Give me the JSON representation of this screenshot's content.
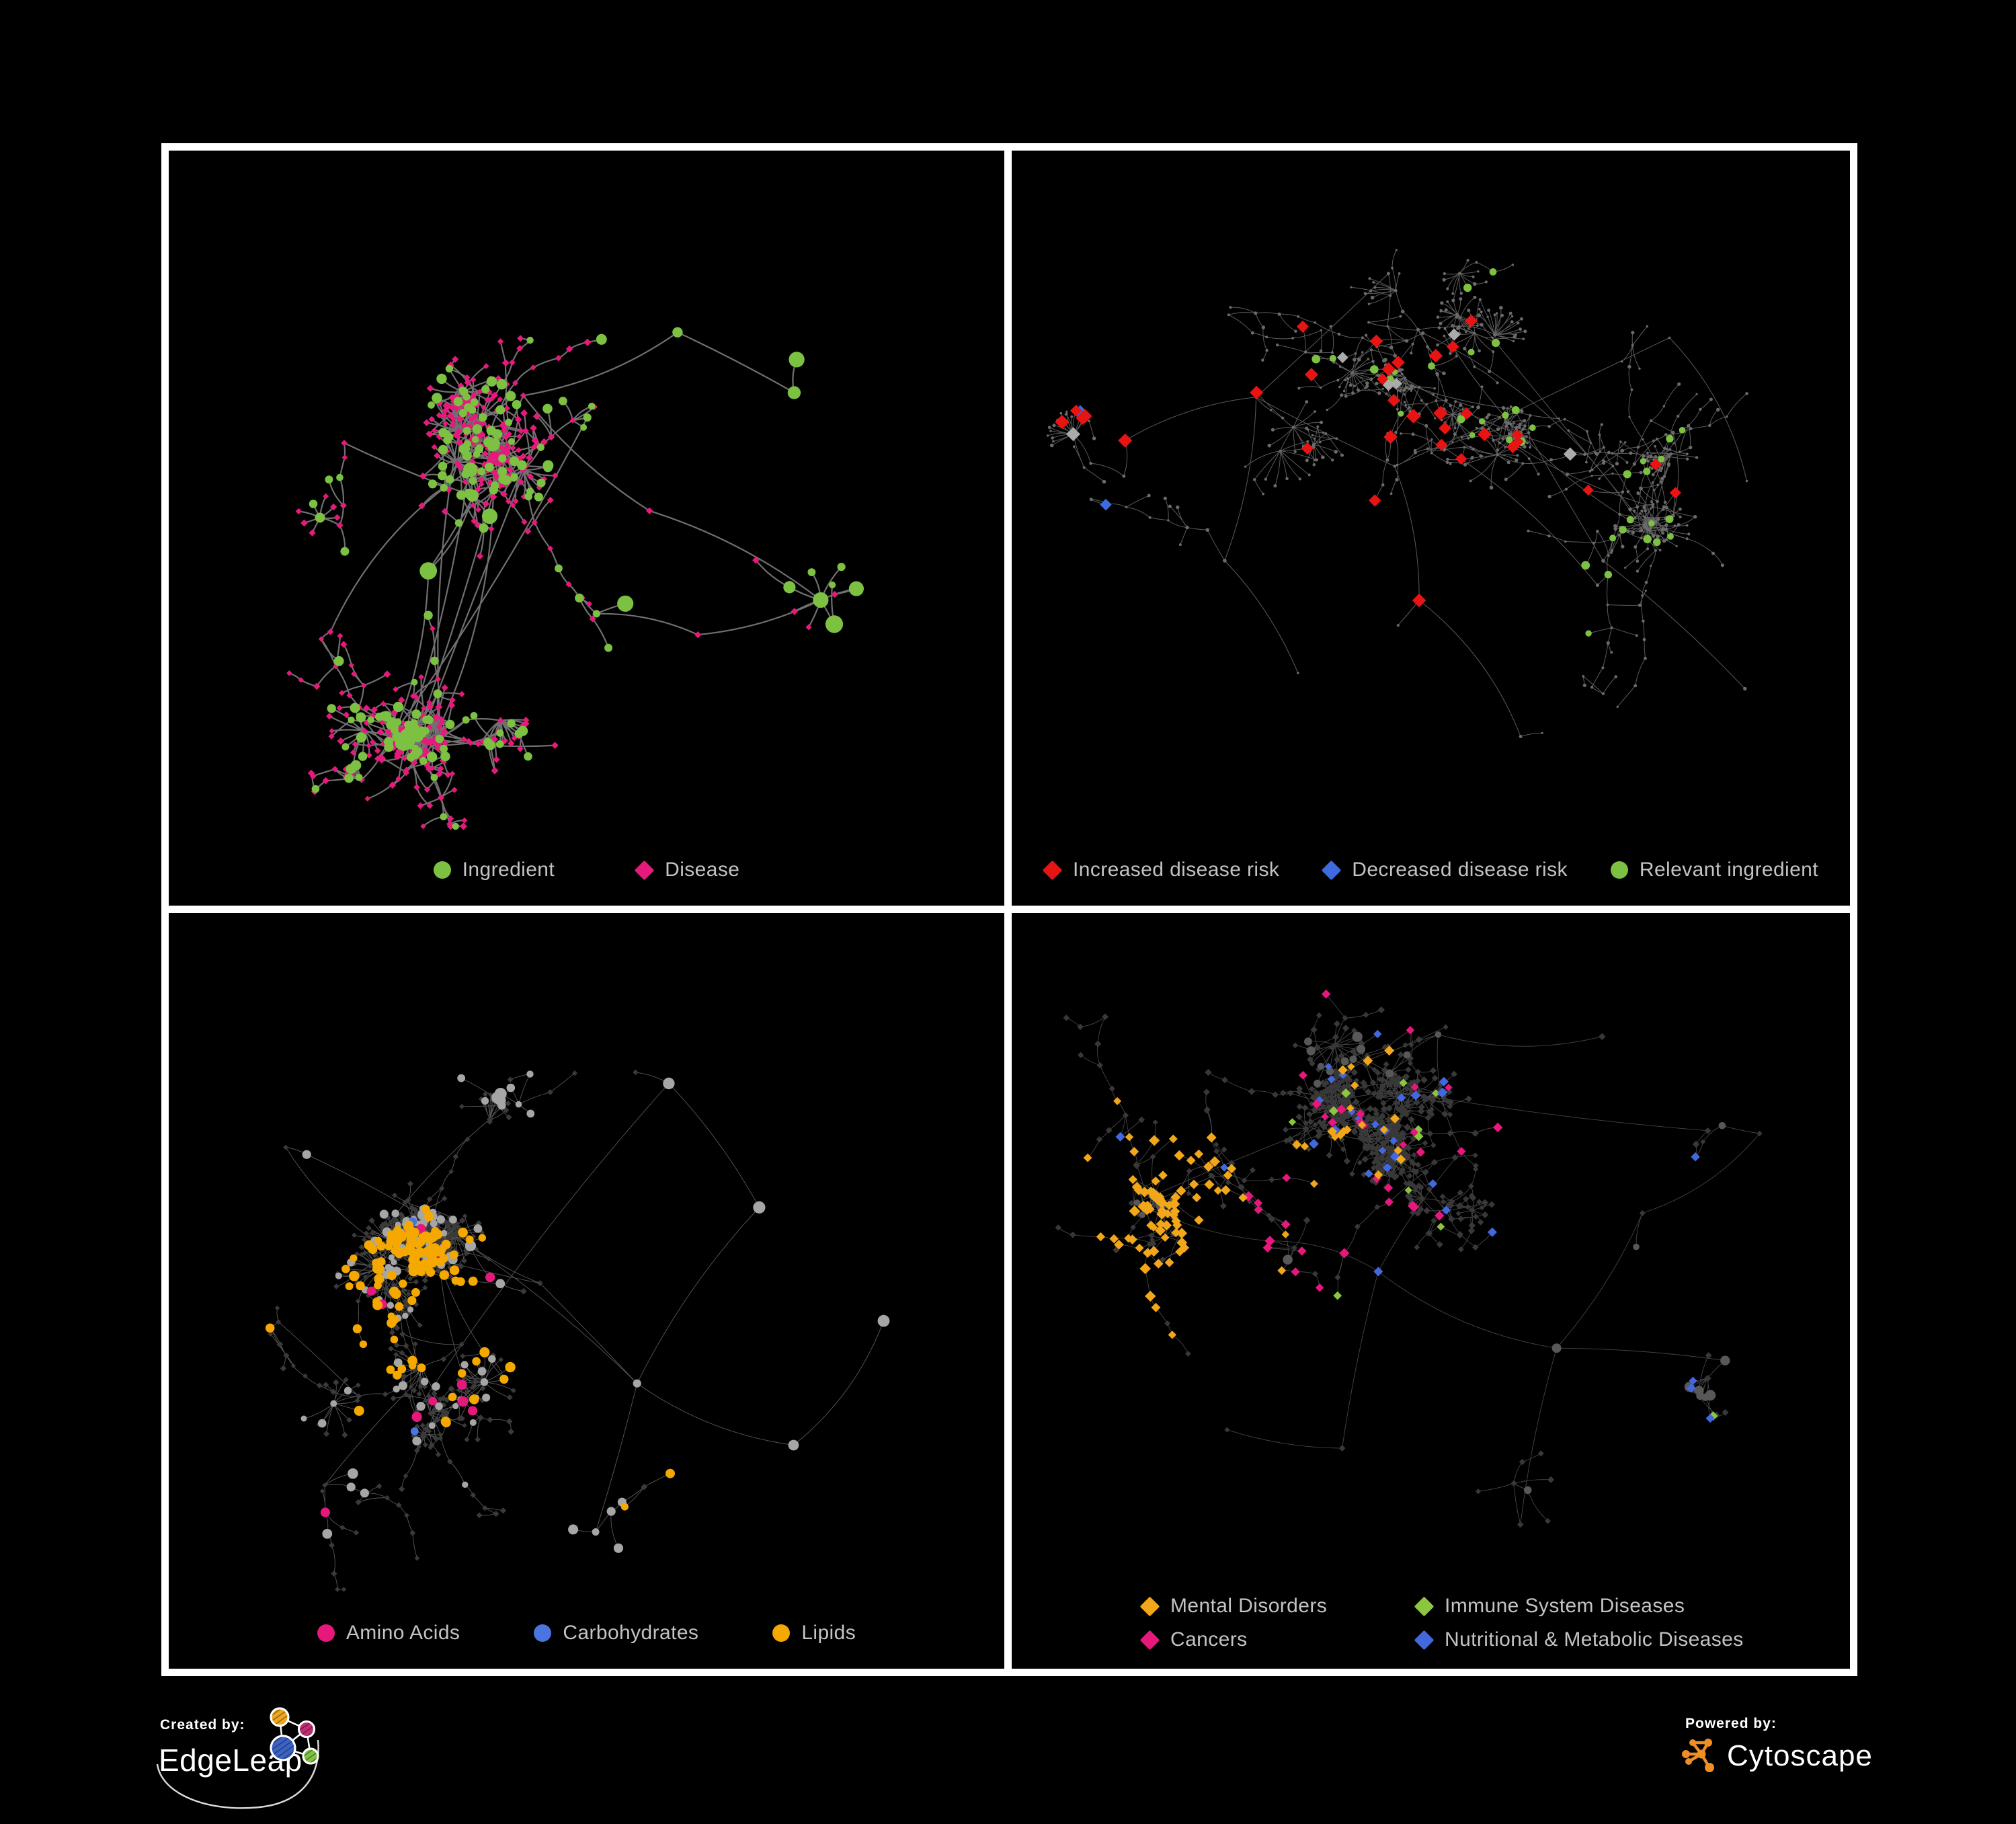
{
  "figure": {
    "background": "#000000",
    "frame_color": "#ffffff",
    "legend_text_color": "#c3c3c3"
  },
  "panels": [
    {
      "id": "ingredient-disease-network",
      "legend": {
        "items": [
          {
            "label": "Ingredient",
            "shape": "circle",
            "color": "#7dc142"
          },
          {
            "label": "Disease",
            "shape": "diamond",
            "color": "#e61a7c"
          }
        ]
      },
      "network": {
        "seed": 7,
        "count": 640,
        "burst": 0.055,
        "chain": 0.045,
        "att": 0.5,
        "cross": 0.035,
        "len": 1.12,
        "margins": [
          30,
          40,
          118
        ],
        "hubs": [
          [
            0.44,
            0.34
          ],
          [
            0.56,
            0.47
          ],
          [
            0.31,
            0.56
          ],
          [
            0.61,
            0.25
          ],
          [
            0.27,
            0.76
          ],
          [
            0.47,
            0.8
          ],
          [
            0.74,
            0.32
          ],
          [
            0.79,
            0.6
          ],
          [
            0.64,
            0.64
          ],
          [
            0.37,
            0.44
          ],
          [
            0.52,
            0.6
          ],
          [
            0.22,
            0.4
          ]
        ],
        "edge": {
          "color": "#808080",
          "width": 2.2,
          "opacity": 0.88
        },
        "rules": [
          {
            "shape": "circle",
            "color": "#7dc142",
            "size": [
              9,
              14
            ],
            "prob": 0.5,
            "maxDepth": 1
          },
          {
            "shape": "circle",
            "color": "#7dc142",
            "size": [
              5,
              8
            ],
            "prob": 0.28
          },
          {
            "shape": "diamond",
            "color": "#e61a7c",
            "size": [
              4.2,
              5.6
            ],
            "prob": 1
          }
        ]
      }
    },
    {
      "id": "disease-risk-network",
      "legend": {
        "items": [
          {
            "label": "Increased disease risk",
            "shape": "diamond",
            "color": "#e81414"
          },
          {
            "label": "Decreased disease risk",
            "shape": "diamond",
            "color": "#3e6be0"
          },
          {
            "label": "Relevant ingredient",
            "shape": "circle",
            "color": "#7dc142"
          }
        ]
      },
      "network": {
        "seed": 15,
        "count": 700,
        "burst": 0.05,
        "chain": 0.1,
        "att": 0.52,
        "cross": 0.04,
        "len": 1.05,
        "margins": [
          30,
          40,
          118
        ],
        "hubs": [
          [
            0.3,
            0.33
          ],
          [
            0.46,
            0.42
          ],
          [
            0.61,
            0.34
          ],
          [
            0.24,
            0.55
          ],
          [
            0.5,
            0.6
          ],
          [
            0.71,
            0.55
          ],
          [
            0.8,
            0.24
          ],
          [
            0.35,
            0.7
          ],
          [
            0.62,
            0.76
          ],
          [
            0.86,
            0.7
          ],
          [
            0.14,
            0.4
          ],
          [
            0.45,
            0.18
          ],
          [
            0.88,
            0.45
          ]
        ],
        "edge": {
          "color": "#6b6b6b",
          "width": 1.0,
          "opacity": 0.85
        },
        "rules": [
          {
            "shape": "diamond",
            "color": "#e81414",
            "size": [
              8.5,
              11
            ],
            "prob": 0.1,
            "zone": [
              0.27,
              0.22,
              0.58,
              0.62
            ]
          },
          {
            "shape": "diamond",
            "color": "#e81414",
            "size": [
              8.5,
              11
            ],
            "prob": 0.1,
            "zone": [
              0.05,
              0.22,
              0.2,
              0.45
            ]
          },
          {
            "shape": "diamond",
            "color": "#e81414",
            "size": [
              8,
              10
            ],
            "prob": 0.025,
            "zone": [
              0.55,
              0.3,
              0.85,
              0.78
            ]
          },
          {
            "shape": "diamond",
            "color": "#3e6be0",
            "size": [
              8.5,
              11
            ],
            "prob": 0.12,
            "zone": [
              0.06,
              0.26,
              0.2,
              0.55
            ]
          },
          {
            "shape": "diamond",
            "color": "#3e6be0",
            "size": [
              8.5,
              10.5
            ],
            "prob": 0.5,
            "zone": [
              0.83,
              0.13,
              0.92,
              0.21
            ]
          },
          {
            "shape": "diamond",
            "color": "#ababab",
            "size": [
              8,
              10.5
            ],
            "prob": 0.015,
            "zone": [
              0.05,
              0.2,
              0.75,
              0.72
            ]
          },
          {
            "shape": "circle",
            "color": "#7dc142",
            "size": [
              4.5,
              6.5
            ],
            "prob": 0.06,
            "zone": [
              0.05,
              0.15,
              0.8,
              0.72
            ]
          },
          {
            "shape": "circle",
            "color": "#6b6b6b",
            "size": [
              1.6,
              2.8
            ],
            "prob": 1
          }
        ]
      }
    },
    {
      "id": "macronutrient-class-network",
      "legend": {
        "items": [
          {
            "label": "Amino Acids",
            "shape": "circle",
            "color": "#e6187c"
          },
          {
            "label": "Carbohydrates",
            "shape": "circle",
            "color": "#4a74e0"
          },
          {
            "label": "Lipids",
            "shape": "circle",
            "color": "#f5a800"
          }
        ]
      },
      "network": {
        "seed": 23,
        "count": 730,
        "burst": 0.08,
        "chain": 0.06,
        "att": 0.45,
        "cross": 0.03,
        "len": 1.0,
        "margins": [
          30,
          40,
          118
        ],
        "hubs": [
          [
            0.26,
            0.45
          ],
          [
            0.38,
            0.28
          ],
          [
            0.45,
            0.5
          ],
          [
            0.3,
            0.6
          ],
          [
            0.55,
            0.64
          ],
          [
            0.7,
            0.4
          ],
          [
            0.2,
            0.74
          ],
          [
            0.5,
            0.82
          ],
          [
            0.74,
            0.72
          ],
          [
            0.6,
            0.22
          ],
          [
            0.84,
            0.55
          ],
          [
            0.35,
            0.45
          ],
          [
            0.15,
            0.3
          ]
        ],
        "edge": {
          "color": "#6e6e6e",
          "width": 0.9,
          "opacity": 0.8
        },
        "rules": [
          {
            "shape": "circle",
            "color": "#f5a800",
            "size": [
              5.5,
              8
            ],
            "prob": 0.5,
            "zone": [
              0.38,
              0.28,
              0.52,
              0.45
            ]
          },
          {
            "shape": "circle",
            "color": "#4a74e0",
            "size": [
              5.5,
              7.5
            ],
            "prob": 0.22,
            "zone": [
              0.38,
              0.28,
              0.52,
              0.45
            ]
          },
          {
            "shape": "circle",
            "color": "#f5a800",
            "size": [
              5.5,
              8
            ],
            "prob": 0.22,
            "zone": [
              0.2,
              0.42,
              0.42,
              0.62
            ]
          },
          {
            "shape": "circle",
            "color": "#e6187c",
            "size": [
              6,
              8
            ],
            "prob": 0.03,
            "zone": [
              0.05,
              0.45,
              0.95,
              0.95
            ]
          },
          {
            "shape": "circle",
            "color": "#e6187c",
            "size": [
              6,
              8
            ],
            "prob": 0.012
          },
          {
            "shape": "circle",
            "color": "#f5a800",
            "size": [
              5.5,
              7.5
            ],
            "prob": 0.045
          },
          {
            "shape": "circle",
            "color": "#4a74e0",
            "size": [
              5,
              7
            ],
            "prob": 0.008
          },
          {
            "shape": "circle",
            "color": "#a6a6a6",
            "size": [
              5.5,
              10
            ],
            "prob": 0.4,
            "maxDepth": 2
          },
          {
            "shape": "circle",
            "color": "#a6a6a6",
            "size": [
              4.5,
              7
            ],
            "prob": 0.16
          },
          {
            "shape": "diamond",
            "color": "#3a3a3a",
            "size": [
              3.6,
              4.8
            ],
            "prob": 1
          }
        ]
      }
    },
    {
      "id": "disease-category-network",
      "legend": {
        "items": [
          {
            "label": "Mental Disorders",
            "shape": "diamond",
            "color": "#f2a71b"
          },
          {
            "label": "Immune System Diseases",
            "shape": "diamond",
            "color": "#8cc63e"
          },
          {
            "label": "Cancers",
            "shape": "diamond",
            "color": "#e6187c"
          },
          {
            "label": "Nutritional & Metabolic Diseases",
            "shape": "diamond",
            "color": "#4368de"
          }
        ]
      },
      "network": {
        "seed": 31,
        "count": 780,
        "burst": 0.08,
        "chain": 0.06,
        "att": 0.45,
        "cross": 0.035,
        "len": 1.0,
        "margins": [
          30,
          40,
          150
        ],
        "hubs": [
          [
            0.16,
            0.38
          ],
          [
            0.3,
            0.45
          ],
          [
            0.44,
            0.48
          ],
          [
            0.55,
            0.3
          ],
          [
            0.64,
            0.57
          ],
          [
            0.4,
            0.7
          ],
          [
            0.75,
            0.4
          ],
          [
            0.25,
            0.7
          ],
          [
            0.6,
            0.8
          ],
          [
            0.84,
            0.6
          ],
          [
            0.88,
            0.28
          ],
          [
            0.5,
            0.15
          ],
          [
            0.35,
            0.22
          ],
          [
            0.7,
            0.18
          ]
        ],
        "edge": {
          "color": "#5c5c5c",
          "width": 0.9,
          "opacity": 0.75
        },
        "rules": [
          {
            "shape": "diamond",
            "color": "#f2a71b",
            "size": [
              6,
              8.5
            ],
            "prob": 0.6,
            "zone": [
              0.08,
              0.28,
              0.28,
              0.58
            ]
          },
          {
            "shape": "diamond",
            "color": "#f2a71b",
            "size": [
              5.5,
              7.5
            ],
            "prob": 0.05,
            "zone": [
              0.0,
              0.03,
              0.48,
              0.68
            ]
          },
          {
            "shape": "diamond",
            "color": "#e6187c",
            "size": [
              6,
              8
            ],
            "prob": 0.42,
            "zone": [
              0.29,
              0.35,
              0.47,
              0.6
            ]
          },
          {
            "shape": "diamond",
            "color": "#e6187c",
            "size": [
              5.5,
              7.5
            ],
            "prob": 0.035,
            "zone": [
              0.25,
              0.05,
              0.72,
              0.9
            ]
          },
          {
            "shape": "diamond",
            "color": "#4368de",
            "size": [
              6,
              8
            ],
            "prob": 0.5,
            "zone": [
              0.5,
              0.48,
              0.63,
              0.64
            ]
          },
          {
            "shape": "diamond",
            "color": "#4368de",
            "size": [
              5.5,
              7.5
            ],
            "prob": 0.22,
            "zone": [
              0.7,
              0.05,
              0.98,
              0.4
            ]
          },
          {
            "shape": "diamond",
            "color": "#4368de",
            "size": [
              5.5,
              7.5
            ],
            "prob": 0.045
          },
          {
            "shape": "diamond",
            "color": "#8cc63e",
            "size": [
              5.5,
              7.5
            ],
            "prob": 0.013
          },
          {
            "shape": "circle",
            "color": "#585858",
            "size": [
              4.5,
              8
            ],
            "prob": 0.5,
            "maxDepth": 2
          },
          {
            "shape": "diamond",
            "color": "#383838",
            "size": [
              4,
              5.4
            ],
            "prob": 1
          }
        ]
      }
    }
  ],
  "footer": {
    "created_by_label": "Created by:",
    "edgeleap_name": "EdgeLeap",
    "powered_by_label": "Powered by:",
    "cytoscape_name": "Cytoscape",
    "edgeleap_colors": {
      "orange": "#efa520",
      "magenta": "#be2d72",
      "blue": "#3b63c4",
      "green": "#7fc142"
    },
    "cytoscape_orange": "#ee8e24"
  }
}
